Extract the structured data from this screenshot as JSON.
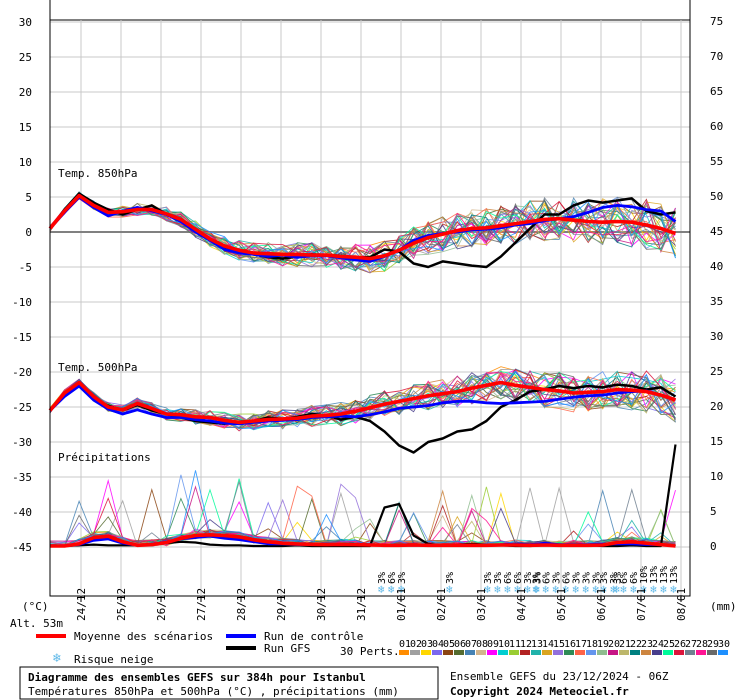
{
  "chart_data": {
    "type": "line",
    "left_axis": {
      "unit": "(°C)",
      "ticks": [
        30,
        25,
        20,
        15,
        10,
        5,
        0,
        -5,
        -10,
        -15,
        -20,
        -25,
        -30,
        -35,
        -40,
        -45
      ],
      "range": [
        -45,
        30
      ]
    },
    "right_axis": {
      "unit": "(mm)",
      "ticks": [
        75,
        70,
        65,
        60,
        55,
        50,
        45,
        40,
        35,
        30,
        25,
        20,
        15,
        10,
        5,
        0
      ],
      "range": [
        0,
        75
      ]
    },
    "x_dates": [
      "24/12",
      "25/12",
      "26/12",
      "27/12",
      "28/12",
      "29/12",
      "30/12",
      "31/12",
      "01/01",
      "02/01",
      "03/01",
      "04/01",
      "05/01",
      "06/01",
      "07/01",
      "08/01"
    ],
    "panels": {
      "t850": "Temp. 850hPa",
      "t500": "Temp. 500hPa",
      "precip": "Précipitations"
    },
    "mean_t850": [
      0.5,
      3,
      5.2,
      3.8,
      2.8,
      2.9,
      3.2,
      3.2,
      2.6,
      1.8,
      0.4,
      -1,
      -2,
      -2.6,
      -3,
      -3.1,
      -3.2,
      -3.2,
      -3.3,
      -3.3,
      -3.5,
      -3.6,
      -3.8,
      -3.4,
      -2.6,
      -1.6,
      -0.8,
      -0.3,
      0.2,
      0.5,
      0.6,
      0.9,
      1.2,
      1.5,
      1.8,
      1.9,
      1.7,
      1.5,
      1.4,
      1.5,
      1.4,
      1,
      0.5,
      -0.2
    ],
    "control_t850": [
      0.5,
      2.8,
      5,
      3.5,
      2.3,
      3,
      3.5,
      3,
      2.5,
      1.5,
      0,
      -1.2,
      -2.5,
      -3,
      -3.2,
      -3.5,
      -3.3,
      -3.6,
      -3.4,
      -3.4,
      -3.7,
      -4,
      -4.2,
      -3.5,
      -2.6,
      -1.2,
      -0.5,
      -0.2,
      0,
      0.3,
      0.4,
      0.6,
      1,
      1.2,
      1.6,
      1.9,
      2.2,
      2.8,
      3.5,
      3.8,
      3.6,
      3.2,
      3,
      1.5
    ],
    "gfs_t850": [
      0.5,
      3.2,
      5.5,
      4.2,
      3.2,
      2.5,
      3.2,
      3.8,
      2.5,
      1.5,
      0.5,
      -1,
      -2.2,
      -2.6,
      -3.2,
      -3.6,
      -3.8,
      -3.5,
      -3.2,
      -3.3,
      -3.4,
      -3.6,
      -3.6,
      -2.5,
      -2.8,
      -4.5,
      -5,
      -4.2,
      -4.5,
      -4.8,
      -5,
      -3.5,
      -1.5,
      0.5,
      2.5,
      2.5,
      3.8,
      4.5,
      4.2,
      4.5,
      4.8,
      3,
      2.5,
      2.8
    ],
    "mean_t500": [
      -25.5,
      -23,
      -21.5,
      -23.5,
      -25,
      -25.4,
      -24.5,
      -25.2,
      -26,
      -26.1,
      -26.4,
      -26.5,
      -26.9,
      -27.2,
      -27,
      -26.8,
      -26.7,
      -26.6,
      -26.3,
      -26.2,
      -26,
      -25.6,
      -25.1,
      -24.6,
      -24.2,
      -23.8,
      -23.4,
      -23.1,
      -22.8,
      -22.3,
      -21.9,
      -21.5,
      -21.9,
      -22.2,
      -22.5,
      -22.7,
      -23,
      -22.9,
      -22.8,
      -22.5,
      -22.6,
      -22.8,
      -23.3,
      -24
    ],
    "control_t500": [
      -25.5,
      -23.5,
      -22,
      -24,
      -25.3,
      -26,
      -25.4,
      -26,
      -26.5,
      -26.5,
      -26.8,
      -27,
      -27.3,
      -27.4,
      -27.2,
      -27,
      -26.9,
      -26.8,
      -26.5,
      -26.4,
      -26.3,
      -26.4,
      -26.1,
      -25.7,
      -25.2,
      -25,
      -24.8,
      -24.4,
      -24.2,
      -24.2,
      -24.4,
      -24.5,
      -24.4,
      -24.3,
      -24.2,
      -23.9,
      -23.6,
      -23.4,
      -23.3,
      -23,
      -22.8,
      -22.7,
      -23.3,
      -24
    ],
    "gfs_t500": [
      -25.5,
      -23.2,
      -22,
      -23.8,
      -24.8,
      -25.5,
      -24.7,
      -25.5,
      -26,
      -26.5,
      -27,
      -27.2,
      -27.4,
      -27.1,
      -27,
      -26.5,
      -26.7,
      -26.4,
      -26,
      -26.2,
      -26.8,
      -26.4,
      -27,
      -28.5,
      -30.5,
      -31.5,
      -30,
      -29.5,
      -28.5,
      -28.2,
      -27,
      -25,
      -24,
      -22.8,
      -22.5,
      -22,
      -22.3,
      -22,
      -22.2,
      -21.8,
      -22,
      -22.5,
      -22.2,
      -23.5
    ],
    "mean_precip": [
      0,
      0,
      0.3,
      1.2,
      1.4,
      0.6,
      0.1,
      0.2,
      0.5,
      1.1,
      1.5,
      1.6,
      1.5,
      1.3,
      0.9,
      0.6,
      0.4,
      0.3,
      0.25,
      0.2,
      0.25,
      0.2,
      0.15,
      0.1,
      0.1,
      0.15,
      0.1,
      0.1,
      0.1,
      0.1,
      0.1,
      0.15,
      0.15,
      0.1,
      0.15,
      0.1,
      0.1,
      0.1,
      0.15,
      0.5,
      0.6,
      0.4,
      0.2,
      0
    ],
    "control_precip": [
      0,
      0,
      0.2,
      0.8,
      1,
      0.4,
      0.1,
      0.2,
      0.6,
      1,
      1.2,
      1.4,
      1.1,
      0.9,
      0.6,
      0.3,
      0.3,
      0.2,
      0.2,
      0.3,
      0.3,
      0.3,
      0.2,
      0.1,
      0.1,
      0.1,
      0.1,
      0.1,
      0.1,
      0.1,
      0.1,
      0.2,
      0.3,
      0.2,
      0.4,
      0.2,
      0.2,
      0.2,
      0.3,
      0.3,
      0.3,
      0.2,
      0.2,
      0
    ],
    "gfs_precip": [
      0,
      0,
      0.1,
      0.2,
      0.1,
      0.1,
      0.1,
      0.2,
      0.4,
      0.6,
      0.5,
      0.2,
      0.1,
      0.1,
      0,
      0,
      0,
      0.1,
      0,
      0,
      0,
      0,
      0,
      5.5,
      6,
      1.5,
      0.3,
      0.1,
      0.2,
      0.3,
      0.2,
      0.1,
      0,
      0,
      0.1,
      0.2,
      0.1,
      0.1,
      0,
      0,
      0.1,
      0,
      0,
      14.5
    ],
    "snow_risk": [
      {
        "x": 23.5,
        "labels": [
          "3%",
          "6%",
          "3%"
        ]
      },
      {
        "x": 27.5,
        "labels": [
          "3%"
        ]
      },
      {
        "x": 31.5,
        "labels": [
          "3%",
          "3%",
          "6%",
          "6%",
          "3%"
        ]
      },
      {
        "x": 33.5,
        "labels": [
          "3%"
        ]
      },
      {
        "x": 35.5,
        "labels": [
          "3%",
          "6%",
          "3%",
          "6%",
          "3%",
          "3%",
          "3%"
        ]
      },
      {
        "x": 39.0,
        "labels": [
          "3%"
        ]
      },
      {
        "x": 40.5,
        "labels": [
          "3%",
          "3%",
          "6%",
          "6%",
          "10%",
          "13%",
          "13%",
          "13%"
        ]
      }
    ],
    "legend": {
      "mean": "Moyenne des scénarios",
      "control": "Run de contrôle",
      "gfs": "Run GFS",
      "snow": "Risque neige",
      "perts": "30 Perts."
    },
    "pert_labels": [
      "01",
      "02",
      "03",
      "04",
      "05",
      "06",
      "07",
      "08",
      "09",
      "10",
      "11",
      "12",
      "13",
      "14",
      "15",
      "16",
      "17",
      "18",
      "19",
      "20",
      "21",
      "22",
      "23",
      "24",
      "25",
      "26",
      "27",
      "28",
      "29",
      "30"
    ],
    "pert_colors": [
      "#ff8c00",
      "#a0a0a0",
      "#ffd700",
      "#7b68ee",
      "#8b4513",
      "#556b2f",
      "#4682b4",
      "#d2b48c",
      "#ff00ff",
      "#00ced1",
      "#9acd32",
      "#b22222",
      "#20b2aa",
      "#daa520",
      "#9370db",
      "#2e8b57",
      "#ff6347",
      "#6495ed",
      "#8fbc8f",
      "#c71585",
      "#bdb76b",
      "#008080",
      "#cd853f",
      "#483d8b",
      "#00fa9a",
      "#dc143c",
      "#708090",
      "#ff1493",
      "#696969",
      "#1e90ff"
    ],
    "colors": {
      "mean": "#ff0000",
      "control": "#0000ff",
      "gfs": "#000000",
      "snow": "#5eb8e8"
    }
  },
  "footer": {
    "alt": "Alt. 53m",
    "title": "Diagramme des ensembles GEFS sur 384h pour Istanbul",
    "subtitle": "Températures 850hPa et 500hPa (°C) , précipitations (mm)",
    "run": "Ensemble GEFS du 23/12/2024 - 06Z",
    "copyright": "Copyright 2024 Meteociel.fr"
  }
}
